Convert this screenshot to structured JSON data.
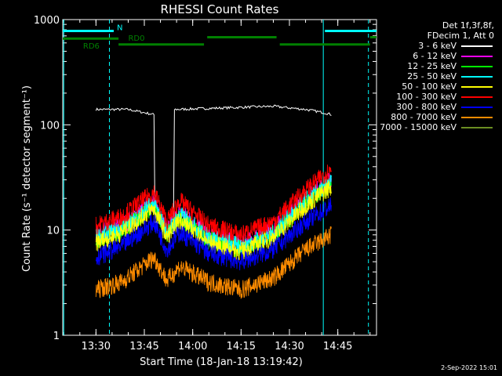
{
  "chart_data": {
    "type": "line",
    "title": "RHESSI Count Rates",
    "xlabel": "Start Time (18-Jan-18 13:19:42)",
    "ylabel": "Count Rate (s⁻¹ detector segment⁻¹)",
    "xlim": [
      "13:19:42",
      "14:57:00"
    ],
    "ylim": [
      1,
      1000
    ],
    "yscale": "log",
    "x_ticks": [
      "13:30",
      "13:45",
      "14:00",
      "14:15",
      "14:30",
      "14:45"
    ],
    "y_ticks": [
      "1",
      "10",
      "100",
      "1000"
    ],
    "legend_header": [
      "Det 1f,3f,8f,",
      "FDecim 1, Att 0"
    ],
    "legend_placement": "right",
    "series": [
      {
        "name": "3 - 6 keV",
        "color": "#ffffff",
        "x": [
          "13:30",
          "13:40",
          "13:48",
          "13:49",
          "13:54",
          "13:55",
          "14:10",
          "14:25",
          "14:35",
          "14:41",
          "14:43"
        ],
        "y": [
          140,
          140,
          125,
          12,
          9,
          140,
          145,
          150,
          140,
          130,
          125
        ]
      },
      {
        "name": "6 - 12 keV",
        "color": "#ff00ff",
        "x": [
          "13:30",
          "13:38",
          "13:48",
          "13:52",
          "13:56",
          "14:05",
          "14:15",
          "14:25",
          "14:35",
          "14:43"
        ],
        "y": [
          9,
          11,
          19,
          10,
          15,
          9,
          7.5,
          10,
          20,
          30
        ]
      },
      {
        "name": "12 - 25 keV",
        "color": "#00ff00",
        "x": [
          "13:30",
          "13:38",
          "13:48",
          "13:52",
          "13:56",
          "14:05",
          "14:15",
          "14:25",
          "14:35",
          "14:43"
        ],
        "y": [
          8,
          10,
          17,
          9,
          13,
          8,
          6.5,
          9,
          18,
          27
        ]
      },
      {
        "name": "25 - 50 keV",
        "color": "#00ffff",
        "x": [
          "13:30",
          "13:38",
          "13:48",
          "13:52",
          "13:56",
          "14:05",
          "14:15",
          "14:25",
          "14:35",
          "14:43"
        ],
        "y": [
          8.5,
          10.5,
          18,
          9.5,
          14,
          8.5,
          7,
          9.5,
          19,
          28
        ]
      },
      {
        "name": "50 - 100 keV",
        "color": "#ffff00",
        "x": [
          "13:30",
          "13:38",
          "13:48",
          "13:52",
          "13:56",
          "14:05",
          "14:15",
          "14:25",
          "14:35",
          "14:43"
        ],
        "y": [
          7.5,
          9.5,
          16,
          8.5,
          12.5,
          7.5,
          6.2,
          8.5,
          17,
          26
        ]
      },
      {
        "name": "100 - 300 keV",
        "color": "#ff0000",
        "x": [
          "13:30",
          "13:38",
          "13:48",
          "13:52",
          "13:56",
          "14:05",
          "14:15",
          "14:25",
          "14:35",
          "14:43"
        ],
        "y": [
          11,
          13.5,
          23,
          12,
          19,
          11,
          9,
          12,
          24,
          38
        ]
      },
      {
        "name": "300 - 800 keV",
        "color": "#0000ff",
        "x": [
          "13:30",
          "13:38",
          "13:48",
          "13:52",
          "13:56",
          "14:05",
          "14:15",
          "14:25",
          "14:35",
          "14:43"
        ],
        "y": [
          5.5,
          7,
          12,
          6.5,
          9.5,
          6,
          5,
          6.5,
          12,
          17
        ]
      },
      {
        "name": "800 - 7000 keV",
        "color": "#ff8c00",
        "x": [
          "13:30",
          "13:38",
          "13:48",
          "13:52",
          "13:56",
          "14:05",
          "14:15",
          "14:25",
          "14:35",
          "14:43"
        ],
        "y": [
          2.7,
          3.2,
          5.5,
          3.3,
          4.5,
          3.2,
          2.7,
          3.5,
          6.5,
          9
        ]
      },
      {
        "name": "7000 - 15000 keV",
        "color": "#6b8e23",
        "x": [],
        "y": []
      }
    ],
    "attenuator_bars": [
      {
        "label": "N",
        "color": "#00ffff",
        "y_value": 780,
        "intervals": [
          [
            "13:19:42",
            "13:35:30"
          ],
          [
            "14:41:00",
            "14:57:00"
          ]
        ]
      },
      {
        "label": "RD6",
        "color": "#008000",
        "y_value": 660,
        "intervals": [
          [
            "13:19:42",
            "13:37:00"
          ]
        ]
      },
      {
        "label": "RD0",
        "color": "#008000",
        "y_value": 580,
        "intervals": [
          [
            "13:37:00",
            "14:03:30"
          ],
          [
            "14:27:00",
            "14:55:00"
          ]
        ]
      },
      {
        "label": "",
        "color": "#008000",
        "y_value": 680,
        "intervals": [
          [
            "14:04:30",
            "14:26:00"
          ],
          [
            "14:55:00",
            "14:57:00"
          ]
        ]
      }
    ],
    "vertical_lines": [
      {
        "x": "13:20:00",
        "style": "solid",
        "color": "#00ffff"
      },
      {
        "x": "13:34:10",
        "style": "dashed",
        "color": "#00ffff"
      },
      {
        "x": "14:40:30",
        "style": "solid",
        "color": "#00ffff"
      },
      {
        "x": "14:54:30",
        "style": "dashed",
        "color": "#00ffff"
      }
    ],
    "grid": false
  },
  "footer": {
    "timestamp": "2-Sep-2022 15:01"
  }
}
